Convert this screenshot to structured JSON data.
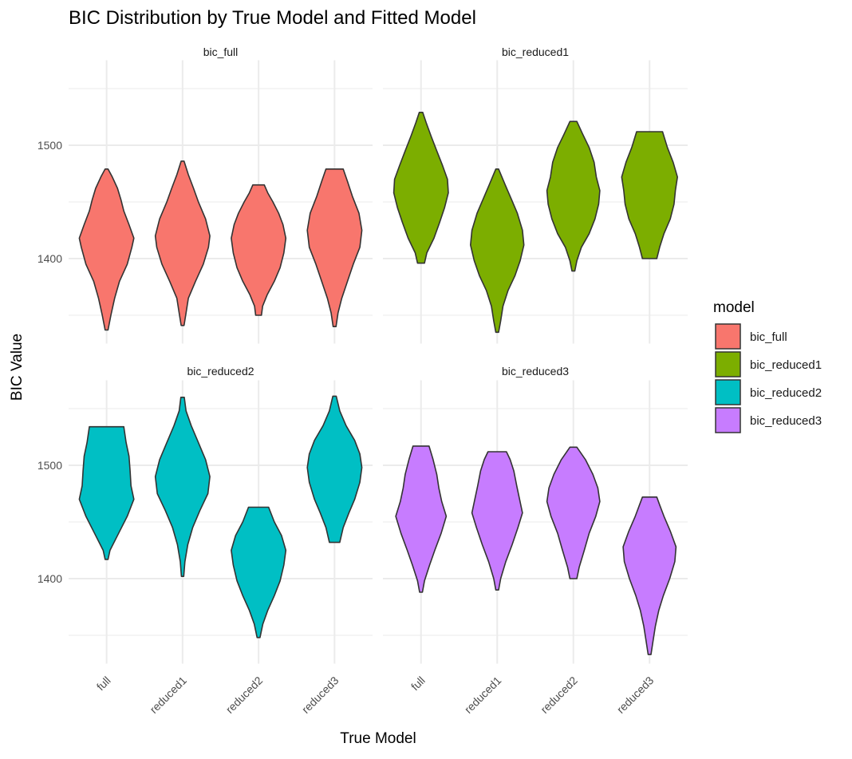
{
  "chart_data": {
    "type": "violin",
    "title": "BIC Distribution by True Model and Fitted Model",
    "xlabel": "True Model",
    "ylabel": "BIC Value",
    "categories": [
      "full",
      "reduced1",
      "reduced2",
      "reduced3"
    ],
    "y_ticks": [
      1400,
      1500
    ],
    "legend": {
      "title": "model",
      "position": "right",
      "entries": [
        {
          "label": "bic_full",
          "color": "#F8766D"
        },
        {
          "label": "bic_reduced1",
          "color": "#7CAE00"
        },
        {
          "label": "bic_reduced2",
          "color": "#00BFC4"
        },
        {
          "label": "bic_reduced3",
          "color": "#C77CFF"
        }
      ]
    },
    "grid": true,
    "panels": [
      {
        "strip": "bic_full",
        "color": "#F8766D",
        "ylim": [
          1325,
          1575
        ],
        "violins": [
          {
            "category": "full",
            "min": 1337,
            "max": 1479,
            "profile": [
              [
                1337,
                0.05
              ],
              [
                1350,
                0.15
              ],
              [
                1365,
                0.28
              ],
              [
                1380,
                0.45
              ],
              [
                1395,
                0.72
              ],
              [
                1410,
                0.88
              ],
              [
                1418,
                0.95
              ],
              [
                1430,
                0.78
              ],
              [
                1442,
                0.6
              ],
              [
                1452,
                0.5
              ],
              [
                1462,
                0.38
              ],
              [
                1472,
                0.2
              ],
              [
                1479,
                0.05
              ]
            ]
          },
          {
            "category": "reduced1",
            "min": 1341,
            "max": 1486,
            "profile": [
              [
                1341,
                0.05
              ],
              [
                1352,
                0.12
              ],
              [
                1365,
                0.2
              ],
              [
                1380,
                0.45
              ],
              [
                1395,
                0.72
              ],
              [
                1410,
                0.9
              ],
              [
                1420,
                0.95
              ],
              [
                1435,
                0.8
              ],
              [
                1450,
                0.55
              ],
              [
                1462,
                0.38
              ],
              [
                1474,
                0.2
              ],
              [
                1486,
                0.05
              ]
            ]
          },
          {
            "category": "reduced2",
            "min": 1350,
            "max": 1465,
            "profile": [
              [
                1350,
                0.1
              ],
              [
                1358,
                0.14
              ],
              [
                1368,
                0.3
              ],
              [
                1380,
                0.55
              ],
              [
                1392,
                0.75
              ],
              [
                1405,
                0.88
              ],
              [
                1418,
                0.95
              ],
              [
                1430,
                0.85
              ],
              [
                1440,
                0.7
              ],
              [
                1450,
                0.5
              ],
              [
                1458,
                0.32
              ],
              [
                1465,
                0.2
              ]
            ]
          },
          {
            "category": "reduced3",
            "min": 1340,
            "max": 1479,
            "profile": [
              [
                1340,
                0.05
              ],
              [
                1352,
                0.12
              ],
              [
                1365,
                0.25
              ],
              [
                1380,
                0.45
              ],
              [
                1395,
                0.65
              ],
              [
                1410,
                0.88
              ],
              [
                1425,
                0.95
              ],
              [
                1440,
                0.85
              ],
              [
                1455,
                0.62
              ],
              [
                1468,
                0.45
              ],
              [
                1479,
                0.3
              ]
            ]
          }
        ]
      },
      {
        "strip": "bic_reduced1",
        "color": "#7CAE00",
        "ylim": [
          1325,
          1575
        ],
        "violins": [
          {
            "category": "full",
            "min": 1396,
            "max": 1529,
            "profile": [
              [
                1396,
                0.12
              ],
              [
                1405,
                0.2
              ],
              [
                1418,
                0.45
              ],
              [
                1432,
                0.65
              ],
              [
                1445,
                0.82
              ],
              [
                1458,
                0.95
              ],
              [
                1470,
                0.92
              ],
              [
                1482,
                0.75
              ],
              [
                1495,
                0.55
              ],
              [
                1508,
                0.35
              ],
              [
                1520,
                0.18
              ],
              [
                1529,
                0.06
              ]
            ]
          },
          {
            "category": "reduced1",
            "min": 1335,
            "max": 1479,
            "profile": [
              [
                1335,
                0.05
              ],
              [
                1345,
                0.12
              ],
              [
                1358,
                0.2
              ],
              [
                1372,
                0.38
              ],
              [
                1385,
                0.62
              ],
              [
                1398,
                0.8
              ],
              [
                1412,
                0.93
              ],
              [
                1425,
                0.88
              ],
              [
                1440,
                0.7
              ],
              [
                1452,
                0.5
              ],
              [
                1465,
                0.28
              ],
              [
                1479,
                0.05
              ]
            ]
          },
          {
            "category": "reduced2",
            "min": 1389,
            "max": 1521,
            "profile": [
              [
                1389,
                0.05
              ],
              [
                1398,
                0.12
              ],
              [
                1410,
                0.28
              ],
              [
                1422,
                0.55
              ],
              [
                1435,
                0.75
              ],
              [
                1448,
                0.88
              ],
              [
                1460,
                0.92
              ],
              [
                1472,
                0.8
              ],
              [
                1485,
                0.72
              ],
              [
                1498,
                0.55
              ],
              [
                1510,
                0.32
              ],
              [
                1521,
                0.12
              ]
            ]
          },
          {
            "category": "reduced3",
            "min": 1400,
            "max": 1512,
            "profile": [
              [
                1400,
                0.25
              ],
              [
                1410,
                0.35
              ],
              [
                1422,
                0.5
              ],
              [
                1435,
                0.72
              ],
              [
                1448,
                0.85
              ],
              [
                1460,
                0.9
              ],
              [
                1472,
                0.97
              ],
              [
                1485,
                0.82
              ],
              [
                1498,
                0.62
              ],
              [
                1512,
                0.45
              ]
            ]
          }
        ]
      },
      {
        "strip": "bic_reduced2",
        "color": "#00BFC4",
        "ylim": [
          1325,
          1575
        ],
        "violins": [
          {
            "category": "full",
            "min": 1417,
            "max": 1534,
            "profile": [
              [
                1417,
                0.05
              ],
              [
                1425,
                0.12
              ],
              [
                1440,
                0.42
              ],
              [
                1455,
                0.72
              ],
              [
                1470,
                0.95
              ],
              [
                1482,
                0.85
              ],
              [
                1495,
                0.82
              ],
              [
                1508,
                0.78
              ],
              [
                1520,
                0.68
              ],
              [
                1534,
                0.6
              ]
            ]
          },
          {
            "category": "reduced1",
            "min": 1402,
            "max": 1560,
            "profile": [
              [
                1402,
                0.04
              ],
              [
                1415,
                0.08
              ],
              [
                1430,
                0.18
              ],
              [
                1445,
                0.35
              ],
              [
                1460,
                0.6
              ],
              [
                1475,
                0.88
              ],
              [
                1490,
                0.95
              ],
              [
                1505,
                0.8
              ],
              [
                1520,
                0.55
              ],
              [
                1535,
                0.3
              ],
              [
                1548,
                0.12
              ],
              [
                1560,
                0.06
              ]
            ]
          },
          {
            "category": "reduced2",
            "min": 1348,
            "max": 1463,
            "profile": [
              [
                1348,
                0.05
              ],
              [
                1360,
                0.15
              ],
              [
                1372,
                0.32
              ],
              [
                1385,
                0.55
              ],
              [
                1398,
                0.75
              ],
              [
                1412,
                0.88
              ],
              [
                1425,
                0.95
              ],
              [
                1438,
                0.8
              ],
              [
                1450,
                0.55
              ],
              [
                1463,
                0.35
              ]
            ]
          },
          {
            "category": "reduced3",
            "min": 1432,
            "max": 1561,
            "profile": [
              [
                1432,
                0.18
              ],
              [
                1445,
                0.3
              ],
              [
                1458,
                0.5
              ],
              [
                1470,
                0.7
              ],
              [
                1485,
                0.88
              ],
              [
                1498,
                0.95
              ],
              [
                1510,
                0.88
              ],
              [
                1522,
                0.7
              ],
              [
                1535,
                0.4
              ],
              [
                1548,
                0.18
              ],
              [
                1561,
                0.06
              ]
            ]
          }
        ]
      },
      {
        "strip": "bic_reduced3",
        "color": "#C77CFF",
        "ylim": [
          1325,
          1575
        ],
        "violins": [
          {
            "category": "full",
            "min": 1388,
            "max": 1517,
            "profile": [
              [
                1388,
                0.05
              ],
              [
                1398,
                0.12
              ],
              [
                1412,
                0.3
              ],
              [
                1425,
                0.48
              ],
              [
                1440,
                0.7
              ],
              [
                1455,
                0.88
              ],
              [
                1468,
                0.72
              ],
              [
                1480,
                0.62
              ],
              [
                1492,
                0.55
              ],
              [
                1505,
                0.42
              ],
              [
                1517,
                0.28
              ]
            ]
          },
          {
            "category": "reduced1",
            "min": 1390,
            "max": 1512,
            "profile": [
              [
                1390,
                0.05
              ],
              [
                1400,
                0.12
              ],
              [
                1415,
                0.3
              ],
              [
                1430,
                0.52
              ],
              [
                1445,
                0.72
              ],
              [
                1458,
                0.88
              ],
              [
                1470,
                0.78
              ],
              [
                1482,
                0.68
              ],
              [
                1495,
                0.58
              ],
              [
                1505,
                0.45
              ],
              [
                1512,
                0.32
              ]
            ]
          },
          {
            "category": "reduced2",
            "min": 1400,
            "max": 1516,
            "profile": [
              [
                1400,
                0.12
              ],
              [
                1410,
                0.2
              ],
              [
                1425,
                0.38
              ],
              [
                1440,
                0.55
              ],
              [
                1455,
                0.78
              ],
              [
                1468,
                0.92
              ],
              [
                1480,
                0.85
              ],
              [
                1492,
                0.68
              ],
              [
                1505,
                0.42
              ],
              [
                1516,
                0.12
              ]
            ]
          },
          {
            "category": "reduced3",
            "min": 1333,
            "max": 1472,
            "profile": [
              [
                1333,
                0.05
              ],
              [
                1345,
                0.12
              ],
              [
                1358,
                0.2
              ],
              [
                1372,
                0.32
              ],
              [
                1385,
                0.48
              ],
              [
                1400,
                0.7
              ],
              [
                1415,
                0.88
              ],
              [
                1428,
                0.92
              ],
              [
                1442,
                0.72
              ],
              [
                1455,
                0.5
              ],
              [
                1465,
                0.35
              ],
              [
                1472,
                0.25
              ]
            ]
          }
        ]
      }
    ]
  }
}
